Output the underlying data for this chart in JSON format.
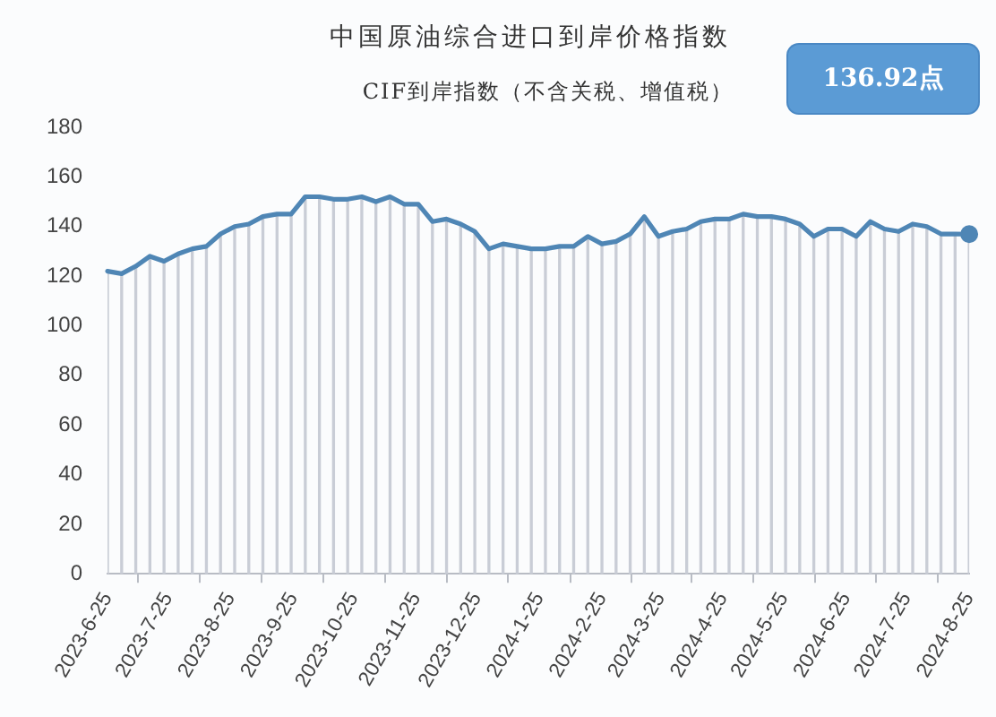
{
  "chart_data": {
    "type": "line",
    "title": "中国原油综合进口到岸价格指数",
    "subtitle": "CIF到岸指数（不含关税、增值税）",
    "annotations": [
      "136.92点"
    ],
    "x": [
      "2023-06-25",
      "2023-07-02",
      "2023-07-09",
      "2023-07-16",
      "2023-07-23",
      "2023-07-30",
      "2023-08-06",
      "2023-08-13",
      "2023-08-20",
      "2023-08-27",
      "2023-09-03",
      "2023-09-10",
      "2023-09-17",
      "2023-09-24",
      "2023-10-01",
      "2023-10-08",
      "2023-10-15",
      "2023-10-22",
      "2023-10-29",
      "2023-11-05",
      "2023-11-12",
      "2023-11-19",
      "2023-11-26",
      "2023-12-03",
      "2023-12-10",
      "2023-12-17",
      "2023-12-24",
      "2023-12-31",
      "2024-01-07",
      "2024-01-14",
      "2024-01-21",
      "2024-01-28",
      "2024-02-04",
      "2024-02-11",
      "2024-02-18",
      "2024-02-25",
      "2024-03-03",
      "2024-03-10",
      "2024-03-17",
      "2024-03-24",
      "2024-03-31",
      "2024-04-07",
      "2024-04-14",
      "2024-04-21",
      "2024-04-28",
      "2024-05-05",
      "2024-05-12",
      "2024-05-19",
      "2024-05-26",
      "2024-06-02",
      "2024-06-09",
      "2024-06-16",
      "2024-06-23",
      "2024-06-30",
      "2024-07-07",
      "2024-07-14",
      "2024-07-21",
      "2024-07-28",
      "2024-08-04",
      "2024-08-11",
      "2024-08-18",
      "2024-08-25"
    ],
    "series": [
      {
        "type": "bar",
        "color": "#c9cdd6",
        "values": [
          122,
          121,
          124,
          128,
          126,
          129,
          131,
          132,
          137,
          140,
          141,
          144,
          145,
          145,
          152,
          152,
          151,
          151,
          152,
          150,
          152,
          149,
          149,
          142,
          143,
          141,
          138,
          131,
          133,
          132,
          131,
          131,
          132,
          132,
          136,
          133,
          134,
          137,
          144,
          136,
          138,
          139,
          142,
          143,
          143,
          145,
          144,
          144,
          143,
          141,
          136,
          139,
          139,
          136,
          142,
          139,
          138,
          141,
          140,
          137,
          137,
          136.92
        ]
      },
      {
        "color": "#4f86b5",
        "marker": "none",
        "values": [
          122,
          121,
          124,
          128,
          126,
          129,
          131,
          132,
          137,
          140,
          141,
          144,
          145,
          145,
          152,
          152,
          151,
          151,
          152,
          150,
          152,
          149,
          149,
          142,
          143,
          141,
          138,
          131,
          133,
          132,
          131,
          131,
          132,
          132,
          136,
          133,
          134,
          137,
          144,
          136,
          138,
          139,
          142,
          143,
          143,
          145,
          144,
          144,
          143,
          141,
          136,
          139,
          139,
          136,
          142,
          139,
          138,
          141,
          140,
          137,
          137,
          136.92
        ]
      },
      {
        "type": "scatter",
        "color": "#4f86b5",
        "marker": "circle",
        "x": [
          "2024-08-25"
        ],
        "values": [
          136.92
        ]
      }
    ],
    "xlim": [
      "2023-06-25",
      "2024-08-25"
    ],
    "xticks": [
      {
        "value": "2023-06-25",
        "label": "2023-6-25"
      },
      {
        "value": "2023-07-25",
        "label": "2023-7-25"
      },
      {
        "value": "2023-08-25",
        "label": "2023-8-25"
      },
      {
        "value": "2023-09-25",
        "label": "2023-9-25"
      },
      {
        "value": "2023-10-25",
        "label": "2023-10-25"
      },
      {
        "value": "2023-11-25",
        "label": "2023-11-25"
      },
      {
        "value": "2023-12-25",
        "label": "2023-12-25"
      },
      {
        "value": "2024-01-25",
        "label": "2024-1-25"
      },
      {
        "value": "2024-02-25",
        "label": "2024-2-25"
      },
      {
        "value": "2024-03-25",
        "label": "2024-3-25"
      },
      {
        "value": "2024-04-25",
        "label": "2024-4-25"
      },
      {
        "value": "2024-05-25",
        "label": "2024-5-25"
      },
      {
        "value": "2024-06-25",
        "label": "2024-6-25"
      },
      {
        "value": "2024-07-25",
        "label": "2024-7-25"
      },
      {
        "value": "2024-08-25",
        "label": "2024-8-25"
      }
    ],
    "ylim": [
      0,
      180
    ],
    "yticks": [
      0,
      20,
      40,
      60,
      80,
      100,
      120,
      140,
      160,
      180
    ],
    "grid": false,
    "legend": false
  }
}
